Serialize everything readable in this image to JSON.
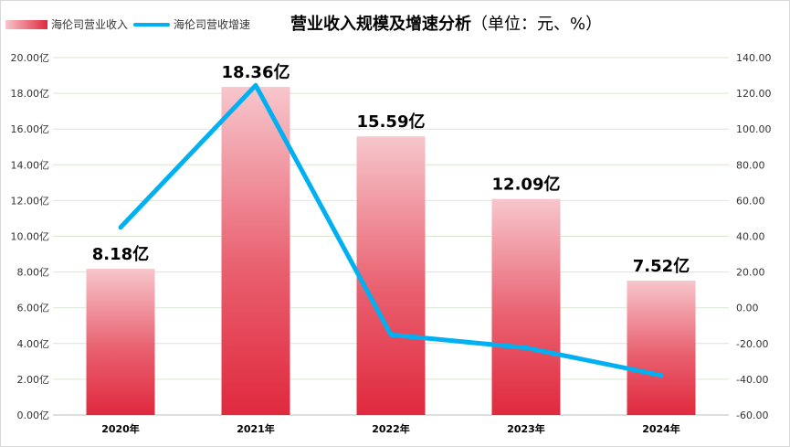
{
  "chart_data": {
    "type": "bar",
    "title": "营业收入规模及增速分析",
    "subtitle": "（单位：元、%）",
    "categories": [
      "2020年",
      "2021年",
      "2022年",
      "2023年",
      "2024年"
    ],
    "series": [
      {
        "name": "海伦司营业收入",
        "type": "bar",
        "axis": "left",
        "values": [
          8.18,
          18.36,
          15.59,
          12.09,
          7.52
        ],
        "labels": [
          "8.18亿",
          "18.36亿",
          "15.59亿",
          "12.09亿",
          "7.52亿"
        ],
        "color_top": "#f7c6cc",
        "color_bottom": "#e0293e"
      },
      {
        "name": "海伦司营收增速",
        "type": "line",
        "axis": "right",
        "values": [
          45.0,
          124.5,
          -15.1,
          -22.4,
          -37.8
        ],
        "color": "#00b0f0"
      }
    ],
    "y_left": {
      "ylim": [
        0,
        20
      ],
      "ticks": [
        "0.00亿",
        "2.00亿",
        "4.00亿",
        "6.00亿",
        "8.00亿",
        "10.00亿",
        "12.00亿",
        "14.00亿",
        "16.00亿",
        "18.00亿",
        "20.00亿"
      ]
    },
    "y_right": {
      "ylim": [
        -60,
        140
      ],
      "ticks": [
        "-60.00",
        "-40.00",
        "-20.00",
        "0.00",
        "20.00",
        "40.00",
        "60.00",
        "80.00",
        "100.00",
        "120.00",
        "140.00"
      ]
    },
    "grid": true,
    "legend_position": "top-left"
  }
}
